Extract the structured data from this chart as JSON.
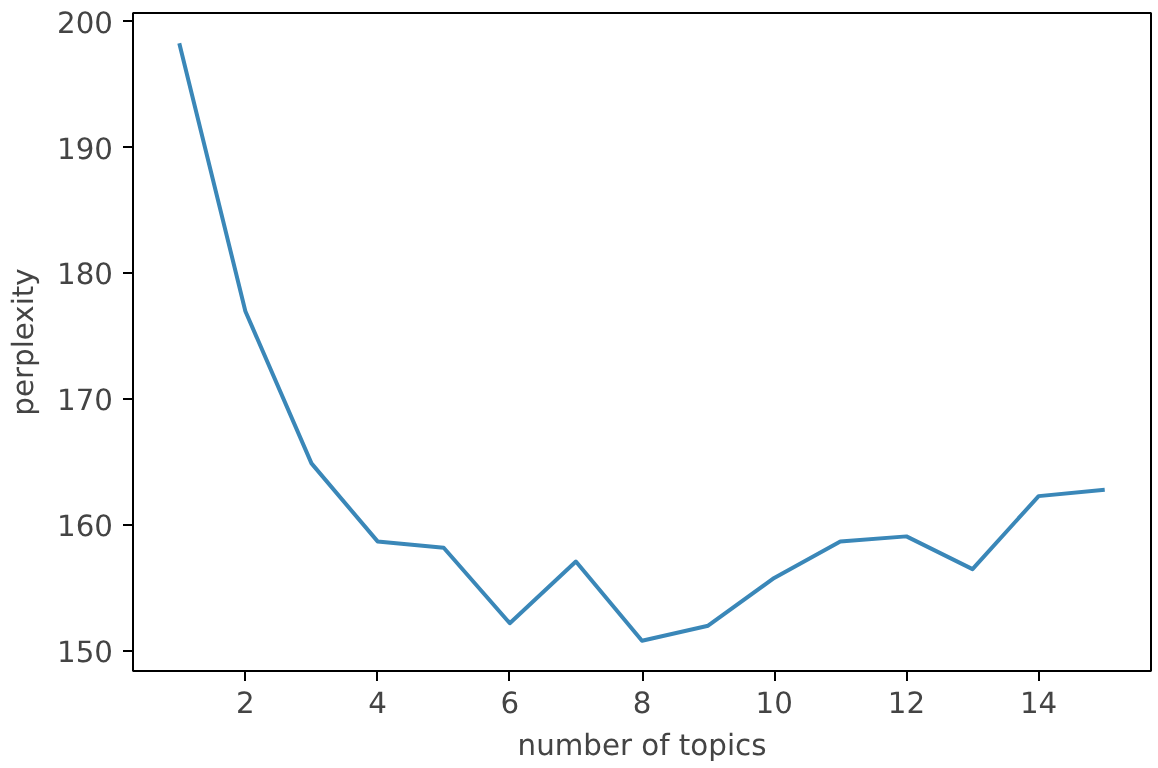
{
  "chart_data": {
    "type": "line",
    "xlabel": "number of topics",
    "ylabel": "perplexity",
    "x": [
      1,
      2,
      3,
      4,
      5,
      6,
      7,
      8,
      9,
      10,
      11,
      12,
      13,
      14,
      15
    ],
    "series": [
      {
        "color": "#3a87b8",
        "values": [
          198.3,
          177.0,
          164.9,
          158.7,
          158.2,
          152.2,
          157.1,
          150.8,
          152.0,
          155.8,
          158.7,
          159.1,
          156.5,
          162.3,
          162.8
        ]
      }
    ],
    "xlim": [
      0.3,
      15.7
    ],
    "ylim": [
      148.4,
      200.7
    ],
    "xticks": [
      2,
      4,
      6,
      8,
      10,
      12,
      14
    ],
    "yticks": [
      150,
      160,
      170,
      180,
      190,
      200
    ],
    "line_style": "solid"
  }
}
